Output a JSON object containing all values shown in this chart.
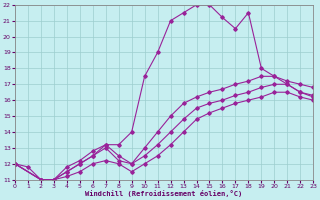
{
  "xlabel": "Windchill (Refroidissement éolien,°C)",
  "xlim": [
    0,
    23
  ],
  "ylim": [
    11,
    22
  ],
  "xticks": [
    0,
    1,
    2,
    3,
    4,
    5,
    6,
    7,
    8,
    9,
    10,
    11,
    12,
    13,
    14,
    15,
    16,
    17,
    18,
    19,
    20,
    21,
    22,
    23
  ],
  "yticks": [
    11,
    12,
    13,
    14,
    15,
    16,
    17,
    18,
    19,
    20,
    21,
    22
  ],
  "bg_color": "#c6eef0",
  "grid_color": "#9dcece",
  "line_color": "#992299",
  "line1_x": [
    0,
    2,
    3,
    4,
    5,
    6,
    7,
    8,
    9,
    10,
    11,
    12,
    13,
    14,
    15,
    16,
    17,
    18,
    19,
    20,
    21,
    22,
    23
  ],
  "line1_y": [
    12,
    11,
    11,
    11.8,
    12.2,
    12.8,
    13.2,
    12.5,
    12.0,
    13.0,
    14.0,
    15.0,
    15.8,
    16.2,
    16.5,
    16.7,
    17.0,
    17.2,
    17.5,
    17.5,
    17.2,
    17.0,
    16.8
  ],
  "line2_x": [
    0,
    2,
    3,
    4,
    5,
    6,
    7,
    8,
    9,
    10,
    11,
    12,
    13,
    14,
    15,
    16,
    17,
    18,
    19,
    20,
    21,
    22,
    23
  ],
  "line2_y": [
    12,
    11,
    11,
    11.5,
    12.0,
    12.5,
    13.0,
    12.2,
    12.0,
    12.5,
    13.2,
    14.0,
    14.8,
    15.5,
    15.8,
    16.0,
    16.3,
    16.5,
    16.8,
    17.0,
    17.0,
    16.5,
    16.2
  ],
  "line3_x": [
    0,
    2,
    3,
    4,
    5,
    6,
    7,
    8,
    9,
    10,
    11,
    12,
    13,
    14,
    15,
    16,
    17,
    18,
    19,
    20,
    21,
    22,
    23
  ],
  "line3_y": [
    12,
    11,
    11,
    11.2,
    11.5,
    12.0,
    12.2,
    12.0,
    11.5,
    12.0,
    12.5,
    13.2,
    14.0,
    14.8,
    15.2,
    15.5,
    15.8,
    16.0,
    16.2,
    16.5,
    16.5,
    16.2,
    16.0
  ],
  "line4_x": [
    0,
    1,
    2,
    3,
    4,
    5,
    6,
    7,
    8,
    9,
    10,
    11,
    12,
    13,
    14,
    15,
    16,
    17,
    18,
    19,
    20,
    21,
    22,
    23
  ],
  "line4_y": [
    12,
    11.8,
    11.0,
    11.0,
    11.5,
    12.0,
    12.5,
    13.2,
    13.2,
    14.0,
    17.5,
    19.0,
    21.0,
    21.5,
    22.0,
    22.0,
    21.2,
    20.5,
    21.5,
    18.0,
    17.5,
    17.0,
    16.5,
    16.3
  ]
}
